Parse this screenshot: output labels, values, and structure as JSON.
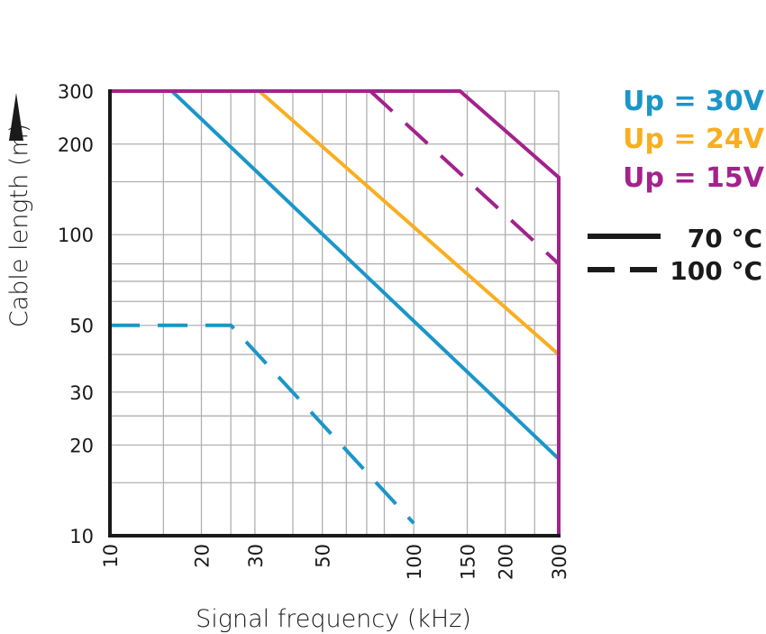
{
  "chart_data": {
    "type": "line",
    "xlabel": "Signal frequency (kHz)",
    "ylabel": "Cable length (m)",
    "x_scale": "log",
    "y_scale": "log",
    "xlim": [
      10,
      300
    ],
    "ylim": [
      10,
      300
    ],
    "x_ticks": [
      10,
      20,
      30,
      50,
      100,
      150,
      200,
      300
    ],
    "y_ticks": [
      10,
      20,
      30,
      50,
      100,
      200,
      300
    ],
    "x_grid": [
      10,
      15,
      20,
      25,
      30,
      40,
      50,
      60,
      70,
      80,
      100,
      150,
      200,
      250,
      300
    ],
    "y_grid": [
      10,
      15,
      20,
      25,
      30,
      40,
      50,
      60,
      70,
      80,
      100,
      150,
      200,
      300
    ],
    "grid": true,
    "colors": {
      "up30": "#1b96c8",
      "up24": "#f9ae20",
      "up15": "#a3228c",
      "axis": "#1a1a1a",
      "grid": "#b0b0b0"
    },
    "legend_series": [
      {
        "key": "up30",
        "label": "Up = 30V",
        "color": "#1b96c8"
      },
      {
        "key": "up24",
        "label": "Up = 24V",
        "color": "#f9ae20"
      },
      {
        "key": "up15",
        "label": "Up = 15V",
        "color": "#a3228c"
      }
    ],
    "legend_styles": [
      {
        "style": "solid",
        "label": "70 °C"
      },
      {
        "style": "dashed",
        "label": "100 °C"
      }
    ],
    "legend_position": "right",
    "series": [
      {
        "key": "up30-70",
        "color": "#1b96c8",
        "style": "solid",
        "points": [
          [
            10,
            300
          ],
          [
            16,
            300
          ],
          [
            300,
            18
          ]
        ]
      },
      {
        "key": "up30-100",
        "color": "#1b96c8",
        "style": "dashed",
        "points": [
          [
            10,
            50
          ],
          [
            25,
            50
          ],
          [
            100,
            11
          ]
        ]
      },
      {
        "key": "up24-70",
        "color": "#f9ae20",
        "style": "solid",
        "points": [
          [
            31,
            300
          ],
          [
            300,
            40
          ]
        ]
      },
      {
        "key": "up15-70",
        "color": "#a3228c",
        "style": "solid",
        "points": [
          [
            10,
            300
          ],
          [
            142,
            300
          ],
          [
            300,
            155
          ],
          [
            300,
            10
          ]
        ]
      },
      {
        "key": "up15-100",
        "color": "#a3228c",
        "style": "dashed",
        "points": [
          [
            72,
            300
          ],
          [
            300,
            80
          ]
        ]
      }
    ]
  }
}
